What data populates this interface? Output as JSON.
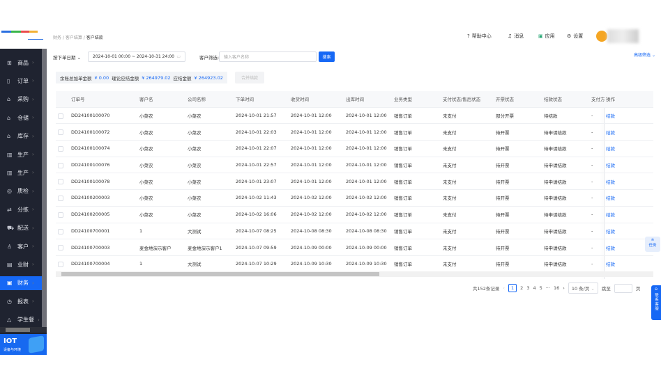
{
  "breadcrumb": [
    "财务",
    "客户结算",
    "客户结款"
  ],
  "topnav": [
    {
      "icon": "help-icon",
      "glyph": "?",
      "label": "帮助中心"
    },
    {
      "icon": "bell-icon",
      "glyph": "♫",
      "label": "消息"
    },
    {
      "icon": "app-icon",
      "glyph": "▣",
      "label": "应用"
    },
    {
      "icon": "gear-icon",
      "glyph": "⚙",
      "label": "设置"
    }
  ],
  "sidebar": {
    "items": [
      {
        "label": "商品",
        "icon": "grid-icon",
        "glyph": "⊞"
      },
      {
        "label": "订单",
        "icon": "order-icon",
        "glyph": "▯"
      },
      {
        "label": "采购",
        "icon": "purchase-icon",
        "glyph": "⌂"
      },
      {
        "label": "仓储",
        "icon": "warehouse-icon",
        "glyph": "⌂"
      },
      {
        "label": "库存",
        "icon": "inventory-icon",
        "glyph": "⌂"
      },
      {
        "label": "生产",
        "icon": "factory-icon",
        "glyph": "▥"
      },
      {
        "label": "生产",
        "icon": "factory-icon",
        "glyph": "▥"
      },
      {
        "label": "质检",
        "icon": "quality-icon",
        "glyph": "◎"
      },
      {
        "label": "分拣",
        "icon": "sort-icon",
        "glyph": "⇄"
      },
      {
        "label": "配送",
        "icon": "truck-icon",
        "glyph": "⛟"
      },
      {
        "label": "客户",
        "icon": "users-icon",
        "glyph": "♙"
      },
      {
        "label": "业财",
        "icon": "chart-icon",
        "glyph": "▤"
      },
      {
        "label": "财务",
        "icon": "finance-icon",
        "glyph": "▣",
        "active": true
      },
      {
        "label": "报表",
        "icon": "report-icon",
        "glyph": "◷"
      },
      {
        "label": "学生餐",
        "icon": "meal-icon",
        "glyph": "△"
      }
    ],
    "banner_title": "IOT",
    "banner_sub": "设备与环境"
  },
  "filters": {
    "date_type": "按下单日期",
    "date_range": "2024-10-01 00:00 ~ 2024-10-31 24:00",
    "customer_label": "客户筛选:",
    "customer_placeholder": "输入客户名称",
    "search_label": "搜索",
    "advanced": "高级筛选"
  },
  "summary": {
    "l1": "余账总加单金额",
    "v1": "¥ 0.00",
    "l2": "理论应结金额",
    "v2": "¥ 264979.02",
    "l3": "应结金额",
    "v3": "¥ 264923.02",
    "merge": "合并结款"
  },
  "table": {
    "columns": [
      "订单号",
      "客户名",
      "公司名称",
      "下单时间",
      "收货时间",
      "出库时间",
      "业务类型",
      "支付状态/售后状态",
      "开票状态",
      "结款状态",
      "支付方",
      "操作"
    ],
    "rows": [
      [
        "DD24100100070",
        "小菜农",
        "小菜农",
        "2024-10-01 21:57",
        "2024-10-01 12:00",
        "2024-10-01 12:00",
        "销售订单",
        "未支付",
        "部分开票",
        "待结款",
        "-",
        "结款"
      ],
      [
        "DD24100100072",
        "小菜农",
        "小菜农",
        "2024-10-01 22:03",
        "2024-10-01 12:00",
        "2024-10-01 12:00",
        "销售订单",
        "未支付",
        "待开票",
        "待申请结款",
        "-",
        "结款"
      ],
      [
        "DD24100100074",
        "小菜农",
        "小菜农",
        "2024-10-01 22:07",
        "2024-10-01 12:00",
        "2024-10-01 12:00",
        "销售订单",
        "未支付",
        "待开票",
        "待申请结款",
        "-",
        "结款"
      ],
      [
        "DD24100100076",
        "小菜农",
        "小菜农",
        "2024-10-01 22:57",
        "2024-10-01 12:00",
        "2024-10-01 12:00",
        "销售订单",
        "未支付",
        "待开票",
        "待申请结款",
        "-",
        "结款"
      ],
      [
        "DD24100100078",
        "小菜农",
        "小菜农",
        "2024-10-01 23:07",
        "2024-10-01 12:00",
        "2024-10-01 12:00",
        "销售订单",
        "未支付",
        "待开票",
        "待申请结款",
        "-",
        "结款"
      ],
      [
        "DD24100200003",
        "小菜农",
        "小菜农",
        "2024-10-02 11:43",
        "2024-10-02 12:00",
        "2024-10-02 12:00",
        "销售订单",
        "未支付",
        "待开票",
        "待申请结款",
        "-",
        "结款"
      ],
      [
        "DD24100200005",
        "小菜农",
        "小菜农",
        "2024-10-02 16:06",
        "2024-10-02 12:00",
        "2024-10-02 12:00",
        "销售订单",
        "未支付",
        "待开票",
        "待申请结款",
        "-",
        "结款"
      ],
      [
        "DD24100700001",
        "1",
        "大测试",
        "2024-10-07 08:25",
        "2024-10-08 08:30",
        "2024-10-08 08:30",
        "销售订单",
        "未支付",
        "待开票",
        "待申请结款",
        "-",
        "结款"
      ],
      [
        "DD24100700003",
        "麦金地演示客户",
        "麦金地演示客户1",
        "2024-10-07 09:59",
        "2024-10-09 00:00",
        "2024-10-09 00:00",
        "销售订单",
        "未支付",
        "待开票",
        "待申请结款",
        "-",
        "结款"
      ],
      [
        "DD24100700004",
        "1",
        "大测试",
        "2024-10-07 10:29",
        "2024-10-09 10:30",
        "2024-10-09 10:30",
        "销售订单",
        "未支付",
        "待开票",
        "待申请结款",
        "-",
        "结款"
      ]
    ]
  },
  "pagination": {
    "total": "共152条记录",
    "pages": [
      "1",
      "2",
      "3",
      "4",
      "5",
      "···",
      "16"
    ],
    "current": "1",
    "page_size": "10 条/页",
    "jump_label": "跳至",
    "page_suffix": "页"
  },
  "float": {
    "task": "任务",
    "service": "联系客服"
  },
  "colors": {
    "accent": "#1668f5",
    "sidebar": "#1f2330"
  }
}
